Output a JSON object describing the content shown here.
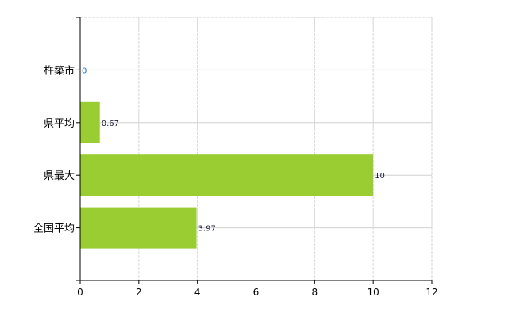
{
  "chart_data": {
    "type": "bar",
    "orientation": "horizontal",
    "categories": [
      "杵築市",
      "県平均",
      "県最大",
      "全国平均"
    ],
    "values": [
      0,
      0.67,
      10,
      3.97
    ],
    "data_labels": [
      "0",
      "0.67",
      "10",
      "3.97"
    ],
    "xlim": [
      0,
      12
    ],
    "xticks": [
      0,
      2,
      4,
      6,
      8,
      10,
      12
    ],
    "title": "",
    "xlabel": "",
    "ylabel": "",
    "grid": true,
    "bar_color": "#9acd32"
  }
}
